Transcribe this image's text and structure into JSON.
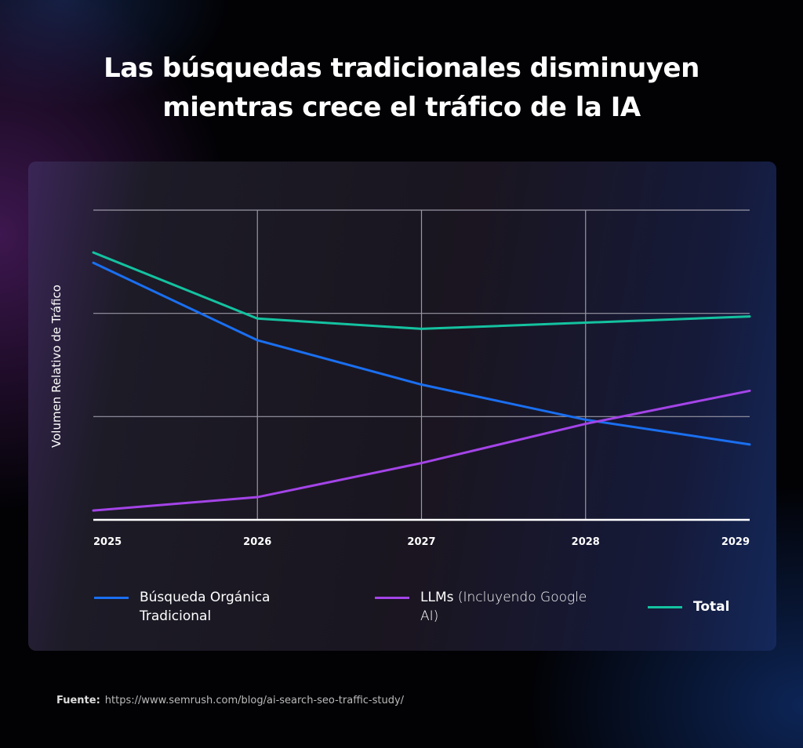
{
  "title_lines": [
    "Las búsquedas tradicionales disminuyen",
    "mientras crece el tráfico de la IA"
  ],
  "source": {
    "label": "Fuente:",
    "url": "https://www.semrush.com/blog/ai-search-seo-traffic-study/"
  },
  "chart_data": {
    "type": "line",
    "title": "Las búsquedas tradicionales disminuyen mientras crece el tráfico de la IA",
    "ylabel": "Volumen Relativo de Tráfico",
    "xlabel": "",
    "x": [
      "2025",
      "2026",
      "2027",
      "2028",
      "2029"
    ],
    "ylim": [
      0,
      3
    ],
    "y_tick_labels": false,
    "grid": true,
    "legend_placement": "bottom",
    "series": [
      {
        "name": "Búsqueda Orgánica Tradicional",
        "name_lines": [
          "Búsqueda Orgánica",
          "Tradicional"
        ],
        "color": "#1a6ff0",
        "values": [
          2.49,
          1.74,
          1.31,
          0.97,
          0.73
        ]
      },
      {
        "name": "LLMs (Incluyendo Google AI)",
        "name_bold": "LLMs",
        "name_rest": " (Incluyendo Google",
        "name_rest2": "AI)",
        "color": "#a444e8",
        "values": [
          0.09,
          0.22,
          0.55,
          0.93,
          1.25
        ]
      },
      {
        "name": "Total",
        "color": "#14c2a0",
        "values": [
          2.59,
          1.95,
          1.85,
          1.91,
          1.97
        ]
      }
    ]
  }
}
